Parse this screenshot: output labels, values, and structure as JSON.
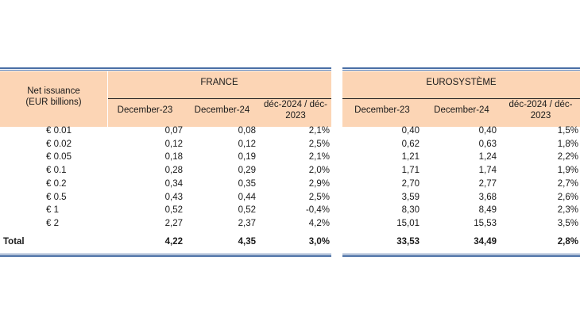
{
  "header": {
    "row_label": "Net issuance\n(EUR billions)",
    "france": "FRANCE",
    "euro": "EUROSYSTÈME",
    "cols": [
      "December-23",
      "December-24",
      "déc-2024 / déc-\n2023"
    ]
  },
  "rows": [
    {
      "label": "€ 0.01",
      "fr": [
        "0,07",
        "0,08",
        "2,1%"
      ],
      "eu": [
        "0,40",
        "0,40",
        "1,5%"
      ]
    },
    {
      "label": "€ 0.02",
      "fr": [
        "0,12",
        "0,12",
        "2,5%"
      ],
      "eu": [
        "0,62",
        "0,63",
        "1,8%"
      ]
    },
    {
      "label": "€ 0.05",
      "fr": [
        "0,18",
        "0,19",
        "2,1%"
      ],
      "eu": [
        "1,21",
        "1,24",
        "2,2%"
      ]
    },
    {
      "label": "€ 0.1",
      "fr": [
        "0,28",
        "0,29",
        "2,0%"
      ],
      "eu": [
        "1,71",
        "1,74",
        "1,9%"
      ]
    },
    {
      "label": "€ 0.2",
      "fr": [
        "0,34",
        "0,35",
        "2,9%"
      ],
      "eu": [
        "2,70",
        "2,77",
        "2,7%"
      ]
    },
    {
      "label": "€ 0.5",
      "fr": [
        "0,43",
        "0,44",
        "2,5%"
      ],
      "eu": [
        "3,59",
        "3,68",
        "2,6%"
      ]
    },
    {
      "label": "€ 1",
      "fr": [
        "0,52",
        "0,52",
        "-0,4%"
      ],
      "eu": [
        "8,30",
        "8,49",
        "2,3%"
      ]
    },
    {
      "label": "€ 2",
      "fr": [
        "2,27",
        "2,37",
        "4,2%"
      ],
      "eu": [
        "15,01",
        "15,53",
        "3,5%"
      ]
    }
  ],
  "total": {
    "label": "Total",
    "fr": [
      "4,22",
      "4,35",
      "3,0%"
    ],
    "eu": [
      "33,53",
      "34,49",
      "2,8%"
    ]
  },
  "colors": {
    "header_bg": "#fcd5b5",
    "rule": "#4a6fa5"
  }
}
